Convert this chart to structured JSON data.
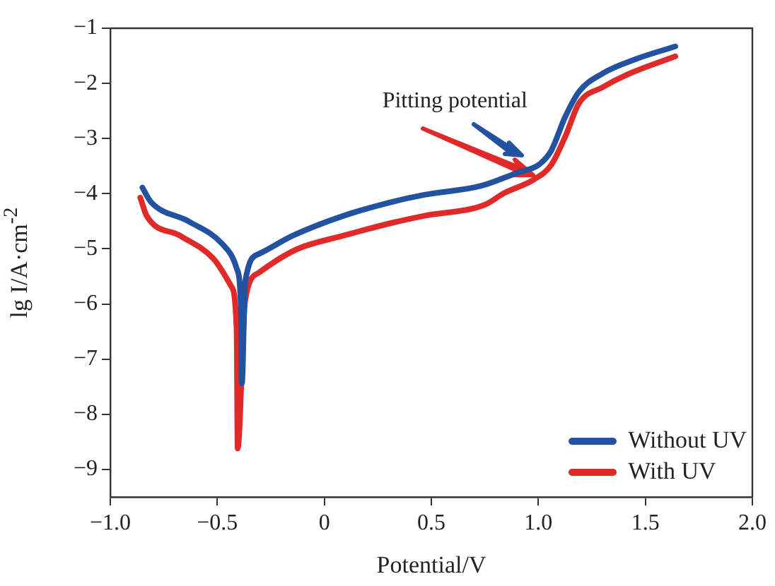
{
  "chart_data": {
    "type": "line",
    "xlabel": "Potential/V",
    "ylabel": "lg I/A·cm$^{-2}$",
    "xlim": [
      -1,
      2
    ],
    "xticks": [
      {
        "value": -1,
        "label": "−1.0"
      },
      {
        "value": -0.5,
        "label": "−0.5"
      },
      0,
      0.5,
      {
        "value": 1,
        "label": "1.0"
      },
      1.5,
      {
        "value": 2,
        "label": "2.0"
      }
    ],
    "ylim": [
      -9.5,
      -1
    ],
    "yticks": [
      {
        "value": -9,
        "label": "−9"
      },
      {
        "value": -8,
        "label": "−8"
      },
      {
        "value": -7,
        "label": "−7"
      },
      {
        "value": -6,
        "label": "−6"
      },
      {
        "value": -5,
        "label": "−5"
      },
      {
        "value": -4,
        "label": "−4"
      },
      {
        "value": -3,
        "label": "−3"
      },
      {
        "value": -2,
        "label": "−2"
      },
      {
        "value": -1,
        "label": "−1"
      }
    ],
    "grid": false,
    "legend": "bottom right",
    "marker": "none",
    "line_style": "solid",
    "annotations": [
      "Pitting potential"
    ],
    "series": [
      {
        "name": "Without UV",
        "color": "#2352a0",
        "x": [
          -0.85,
          -0.81,
          -0.635,
          -0.477,
          -0.41,
          -0.39,
          -0.385,
          -0.37,
          -0.305,
          -0.147,
          0.09,
          0.315,
          0.468,
          0.73,
          0.908,
          1.0,
          1.06,
          1.125,
          1.19,
          1.3,
          1.455,
          1.64
        ],
        "values": [
          -3.89,
          -4.15,
          -4.5,
          -4.91,
          -5.35,
          -6.04,
          -7.44,
          -5.6,
          -5.09,
          -4.76,
          -4.4,
          -4.15,
          -4.02,
          -3.86,
          -3.61,
          -3.48,
          -3.22,
          -2.61,
          -2.15,
          -1.82,
          -1.56,
          -1.33
        ]
      },
      {
        "name": "With UV",
        "color": "#e02a2a",
        "x": [
          -0.86,
          -0.83,
          -0.675,
          -0.52,
          -0.435,
          -0.41,
          -0.405,
          -0.37,
          -0.305,
          -0.13,
          0.09,
          0.315,
          0.468,
          0.75,
          0.84,
          0.98,
          1.06,
          1.125,
          1.19,
          1.3,
          1.41,
          1.64
        ],
        "values": [
          -4.07,
          -4.4,
          -4.76,
          -5.17,
          -5.68,
          -6.45,
          -8.62,
          -5.94,
          -5.43,
          -5.01,
          -4.76,
          -4.53,
          -4.4,
          -4.2,
          -3.99,
          -3.74,
          -3.48,
          -2.97,
          -2.36,
          -2.07,
          -1.85,
          -1.51
        ]
      }
    ]
  }
}
